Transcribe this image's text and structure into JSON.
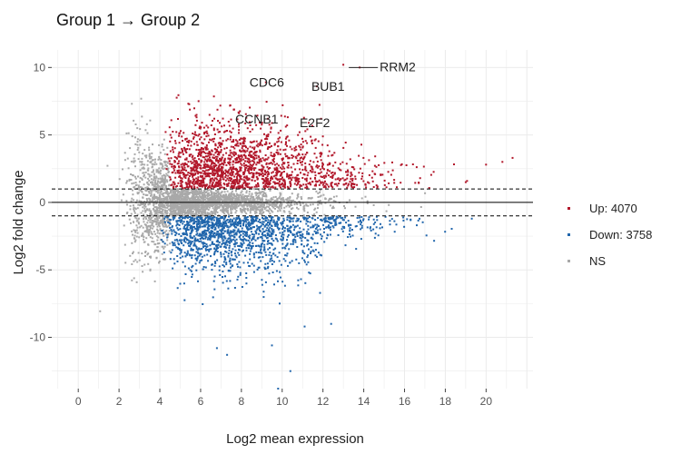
{
  "chart_data": {
    "type": "scatter",
    "title": "Group 1 → Group 2",
    "xlabel": "Log2 mean expression",
    "ylabel": "Log2 fold change",
    "xlim": [
      -1.3,
      22.3
    ],
    "ylim": [
      -13.8,
      11.3
    ],
    "xticks": [
      0,
      2,
      4,
      6,
      8,
      10,
      12,
      14,
      16,
      18,
      20
    ],
    "yticks": [
      10,
      5,
      0,
      -5,
      -10
    ],
    "grid": true,
    "threshold_lines": [
      1,
      -1
    ],
    "zero_line": 0,
    "colors": {
      "up": "#b2182b",
      "down": "#2166ac",
      "ns": "#a9a9a9"
    },
    "legend": {
      "placement": "right",
      "items": [
        {
          "key": "up",
          "label": "Up: 4070",
          "color": "#b2182b"
        },
        {
          "key": "down",
          "label": "Down: 3758",
          "color": "#2166ac"
        },
        {
          "key": "ns",
          "label": "NS",
          "color": "#a9a9a9"
        }
      ]
    },
    "series": [
      {
        "name": "Up: 4070",
        "count": 4070
      },
      {
        "name": "Down: 3758",
        "count": 3758
      },
      {
        "name": "NS"
      }
    ],
    "labeled_genes": [
      {
        "gene": "RRM2",
        "x": 13.8,
        "y": 10.0
      },
      {
        "gene": "CDC6",
        "x": 9.2,
        "y": 8.9
      },
      {
        "gene": "BUB1",
        "x": 11.7,
        "y": 8.6
      },
      {
        "gene": "CCNB1",
        "x": 9.3,
        "y": 6.2
      },
      {
        "gene": "E2F2",
        "x": 11.3,
        "y": 5.9
      }
    ],
    "outliers": [
      {
        "x": 6.8,
        "y": -10.8
      },
      {
        "x": 7.3,
        "y": -11.3
      },
      {
        "x": 9.5,
        "y": -10.6
      },
      {
        "x": 10.4,
        "y": -12.5
      },
      {
        "x": 11.1,
        "y": -9.2
      },
      {
        "x": 12.4,
        "y": -9.0
      },
      {
        "x": 9.8,
        "y": -13.8
      },
      {
        "x": 21.3,
        "y": 3.3
      },
      {
        "x": 20.8,
        "y": 3.0
      },
      {
        "x": 20.0,
        "y": 2.8
      },
      {
        "x": 19.0,
        "y": 1.5
      },
      {
        "x": 19.3,
        "y": -1.2
      },
      {
        "x": 13.0,
        "y": 10.2
      }
    ]
  }
}
